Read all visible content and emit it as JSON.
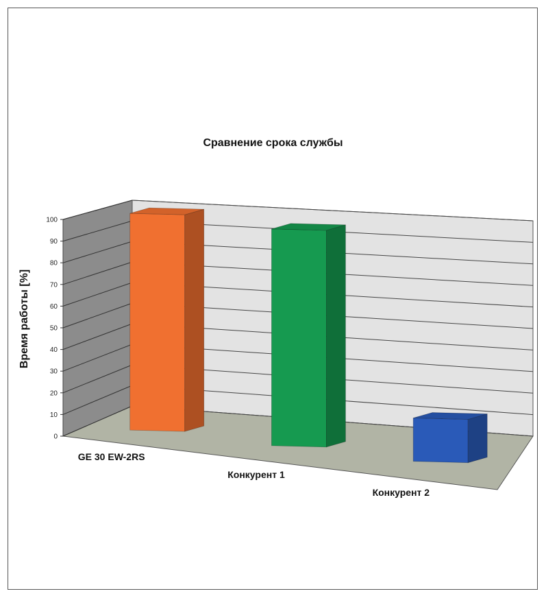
{
  "chart_data": {
    "type": "bar",
    "title": "Сравнение срока службы",
    "ylabel": "Время работы [%]",
    "xlabel": "",
    "categories": [
      "GE 30 EW-2RS",
      "Конкурент 1",
      "Конкурент 2"
    ],
    "values": [
      100,
      100,
      20
    ],
    "colors": [
      "#f07030",
      "#169a50",
      "#2a5ab8"
    ],
    "ylim": [
      0,
      100
    ],
    "yticks": [
      "0",
      "10",
      "20",
      "30",
      "40",
      "50",
      "60",
      "70",
      "80",
      "90",
      "100"
    ],
    "grid": true,
    "style": "3d"
  }
}
